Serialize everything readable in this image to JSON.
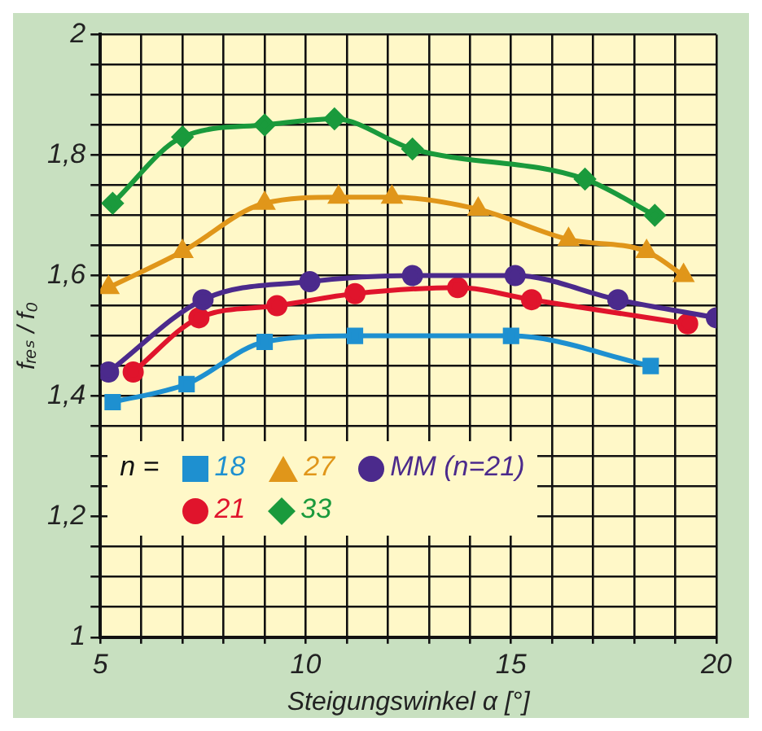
{
  "chart_data": {
    "type": "line",
    "xlabel": "Steigungswinkel α [°]",
    "ylabel": "fᵣₑₛ / f₀",
    "legend_title": "n =",
    "legend": "bottom left",
    "grid": true,
    "line_style": "solid",
    "xlim": [
      5,
      20
    ],
    "ylim": [
      1,
      2
    ],
    "xticks": [
      5,
      {
        "value": 6,
        "label": null
      },
      {
        "value": 7,
        "label": null
      },
      {
        "value": 8,
        "label": null
      },
      {
        "value": 9,
        "label": null
      },
      10,
      {
        "value": 11,
        "label": null
      },
      {
        "value": 12,
        "label": null
      },
      {
        "value": 13,
        "label": null
      },
      {
        "value": 14,
        "label": null
      },
      15,
      {
        "value": 16,
        "label": null
      },
      {
        "value": 17,
        "label": null
      },
      {
        "value": 18,
        "label": null
      },
      {
        "value": 19,
        "label": null
      },
      20
    ],
    "yticks": [
      1,
      {
        "value": 1.05,
        "label": null
      },
      {
        "value": 1.1,
        "label": null
      },
      {
        "value": 1.15,
        "label": null
      },
      {
        "value": 1.2,
        "label": "1,2"
      },
      {
        "value": 1.25,
        "label": null
      },
      {
        "value": 1.3,
        "label": null
      },
      {
        "value": 1.35,
        "label": null
      },
      {
        "value": 1.4,
        "label": "1,4"
      },
      {
        "value": 1.45,
        "label": null
      },
      {
        "value": 1.5,
        "label": null
      },
      {
        "value": 1.55,
        "label": null
      },
      {
        "value": 1.6,
        "label": "1,6"
      },
      {
        "value": 1.65,
        "label": null
      },
      {
        "value": 1.7,
        "label": null
      },
      {
        "value": 1.75,
        "label": null
      },
      {
        "value": 1.8,
        "label": "1,8"
      },
      {
        "value": 1.85,
        "label": null
      },
      {
        "value": 1.9,
        "label": null
      },
      {
        "value": 1.95,
        "label": null
      },
      2
    ],
    "series": [
      {
        "name": "18",
        "color": "#1e90d0",
        "marker": "square",
        "x": [
          5.3,
          7.1,
          9,
          11.2,
          15,
          18.4
        ],
        "values": [
          1.39,
          1.42,
          1.49,
          1.5,
          1.5,
          1.45
        ]
      },
      {
        "name": "27",
        "color": "#e0961a",
        "marker": "triangle",
        "x": [
          5.2,
          7,
          9,
          10.8,
          12.1,
          14.2,
          16.4,
          18.3,
          19.2
        ],
        "values": [
          1.58,
          1.64,
          1.72,
          1.73,
          1.73,
          1.71,
          1.66,
          1.64,
          1.6
        ]
      },
      {
        "name": "MM (n=21)",
        "color": "#4b2a8c",
        "marker": "circle",
        "x": [
          5.2,
          7.5,
          10.1,
          12.6,
          15.1,
          17.6,
          20
        ],
        "values": [
          1.44,
          1.56,
          1.59,
          1.6,
          1.6,
          1.56,
          1.53
        ]
      },
      {
        "name": "21",
        "color": "#e0142c",
        "marker": "circle",
        "x": [
          5.8,
          7.4,
          9.3,
          11.2,
          13.7,
          15.5,
          19.3
        ],
        "values": [
          1.44,
          1.53,
          1.55,
          1.57,
          1.58,
          1.56,
          1.52
        ]
      },
      {
        "name": "33",
        "color": "#1a9a3c",
        "marker": "diamond",
        "x": [
          5.3,
          7,
          9,
          10.7,
          12.6,
          16.8,
          18.5
        ],
        "values": [
          1.72,
          1.83,
          1.85,
          1.86,
          1.81,
          1.76,
          1.7
        ]
      }
    ]
  }
}
